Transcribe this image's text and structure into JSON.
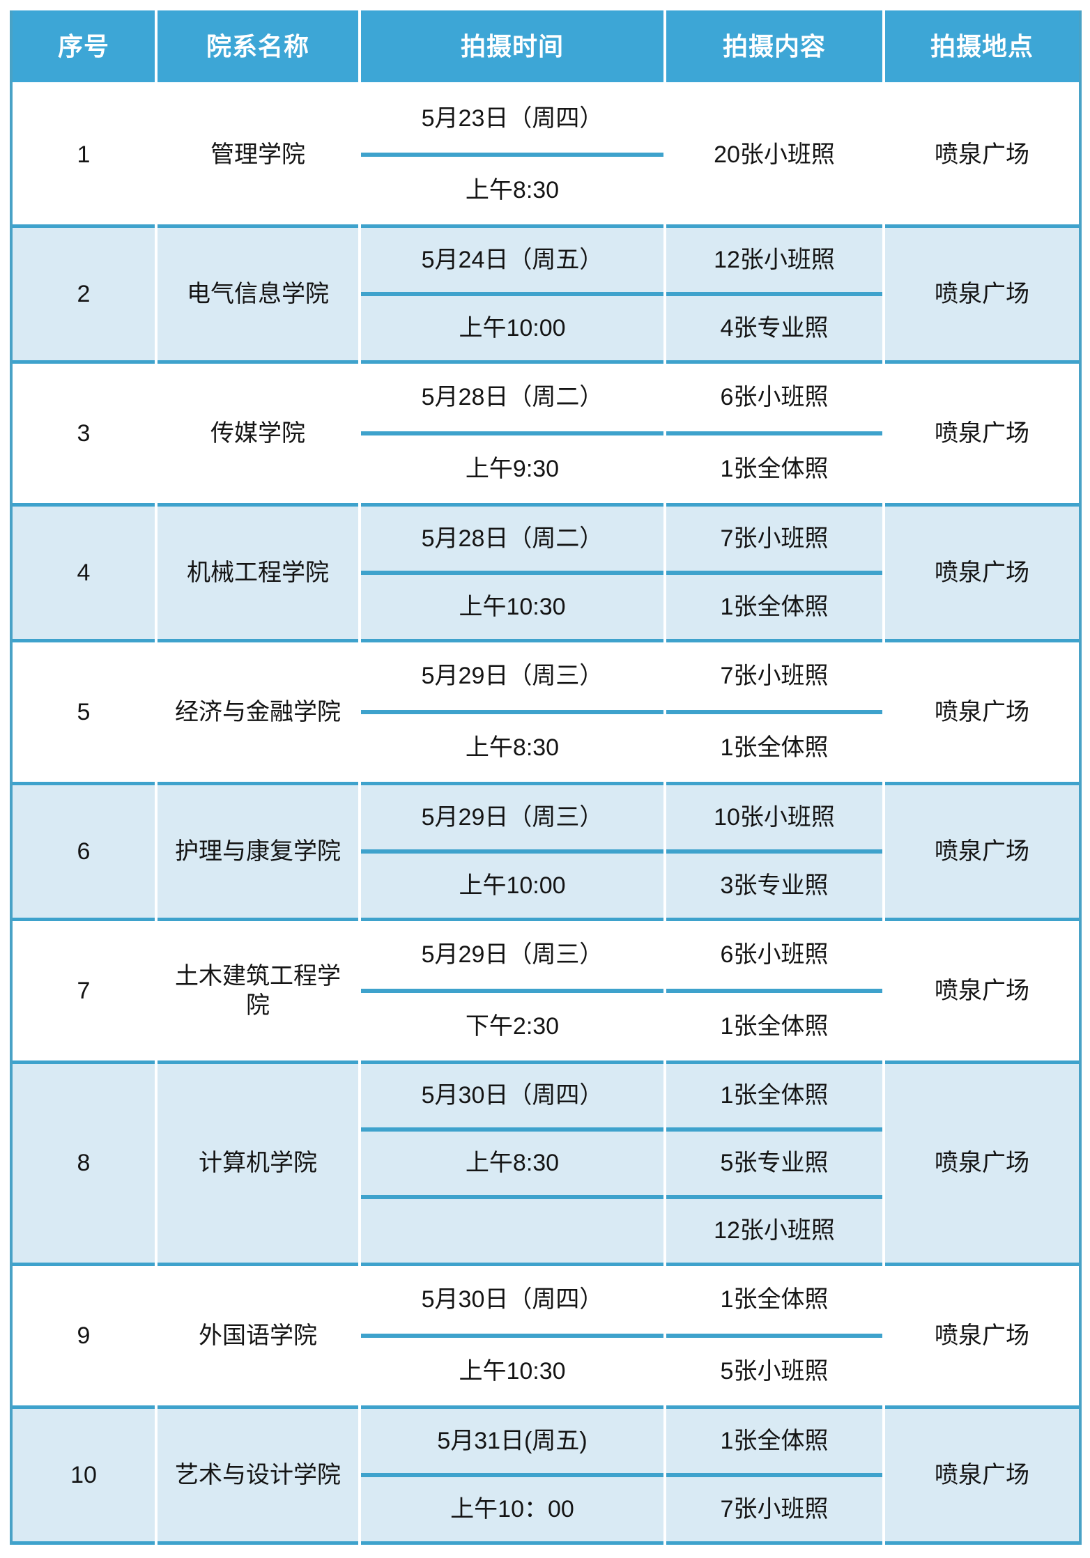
{
  "header": {
    "columns": [
      "序号",
      "院系名称",
      "拍摄时间",
      "拍摄内容",
      "拍摄地点"
    ]
  },
  "rows": [
    {
      "no": "1",
      "college": "管理学院",
      "times": [
        "5月23日（周四）",
        "上午8:30"
      ],
      "contents": [
        "20张小班照"
      ],
      "location": "喷泉广场",
      "shaded": false,
      "tall": false
    },
    {
      "no": "2",
      "college": "电气信息学院",
      "times": [
        "5月24日（周五）",
        "上午10:00"
      ],
      "contents": [
        "12张小班照",
        "4张专业照"
      ],
      "location": "喷泉广场",
      "shaded": true,
      "tall": false
    },
    {
      "no": "3",
      "college": "传媒学院",
      "times": [
        "5月28日（周二）",
        "上午9:30"
      ],
      "contents": [
        "6张小班照",
        "1张全体照"
      ],
      "location": "喷泉广场",
      "shaded": false,
      "tall": false
    },
    {
      "no": "4",
      "college": "机械工程学院",
      "times": [
        "5月28日（周二）",
        "上午10:30"
      ],
      "contents": [
        "7张小班照",
        "1张全体照"
      ],
      "location": "喷泉广场",
      "shaded": true,
      "tall": false
    },
    {
      "no": "5",
      "college": "经济与金融学院",
      "times": [
        "5月29日（周三）",
        "上午8:30"
      ],
      "contents": [
        "7张小班照",
        "1张全体照"
      ],
      "location": "喷泉广场",
      "shaded": false,
      "tall": false
    },
    {
      "no": "6",
      "college": "护理与康复学院",
      "times": [
        "5月29日（周三）",
        "上午10:00"
      ],
      "contents": [
        "10张小班照",
        "3张专业照"
      ],
      "location": "喷泉广场",
      "shaded": true,
      "tall": false
    },
    {
      "no": "7",
      "college": "土木建筑工程学院",
      "times": [
        "5月29日（周三）",
        "下午2:30"
      ],
      "contents": [
        "6张小班照",
        "1张全体照"
      ],
      "location": "喷泉广场",
      "shaded": false,
      "tall": false
    },
    {
      "no": "8",
      "college": "计算机学院",
      "times": [
        "5月30日（周四）",
        "上午8:30",
        ""
      ],
      "contents": [
        "1张全体照",
        "5张专业照",
        "12张小班照"
      ],
      "location": "喷泉广场",
      "shaded": true,
      "tall": true
    },
    {
      "no": "9",
      "college": "外国语学院",
      "times": [
        "5月30日（周四）",
        "上午10:30"
      ],
      "contents": [
        "1张全体照",
        "5张小班照"
      ],
      "location": "喷泉广场",
      "shaded": false,
      "tall": false
    },
    {
      "no": "10",
      "college": "艺术与设计学院",
      "times": [
        "5月31日(周五)",
        "上午10：00"
      ],
      "contents": [
        "1张全体照",
        "7张小班照"
      ],
      "location": "喷泉广场",
      "shaded": true,
      "tall": false
    }
  ],
  "colors": {
    "header_bg": "#3da6d6",
    "row_shade_bg": "#d9eaf4",
    "divider_blue": "#3ea2cc",
    "outer_border": "#49a2c6",
    "header_text": "#ffffff",
    "body_text": "#141414",
    "page_bg": "#ffffff"
  }
}
